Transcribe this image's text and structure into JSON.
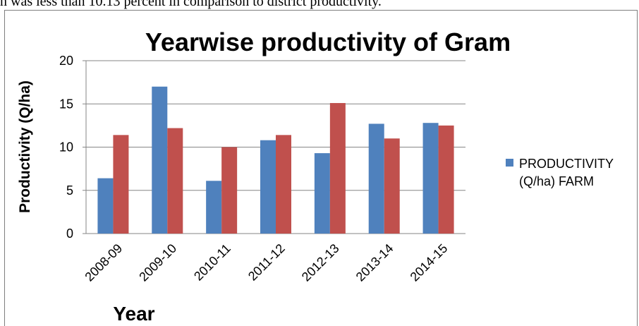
{
  "page": {
    "top_text": "n was less than 10.13 percent in comparison to district productivity."
  },
  "chart_data": {
    "type": "bar",
    "title": "Yearwise productivity of Gram",
    "xlabel": "Year",
    "ylabel": "Productivity  (Q/ha)",
    "categories": [
      "2008-09",
      "2009-10",
      "2010-11",
      "2011-12",
      "2012-13",
      "2013-14",
      "2014-15"
    ],
    "series": [
      {
        "name": "PRODUCTIVITY (Q/ha) FARM",
        "color": "#4f81bd",
        "values": [
          6.4,
          17.0,
          6.1,
          10.8,
          9.3,
          12.7,
          12.8
        ]
      },
      {
        "color": "#c0504d",
        "values": [
          11.4,
          12.2,
          10.0,
          11.4,
          15.1,
          11.0,
          12.5
        ]
      }
    ],
    "ylim": [
      0,
      20
    ],
    "yticks": [
      0,
      5,
      10,
      15,
      20
    ],
    "grid": true,
    "legend": {
      "position": "right",
      "lines": [
        "PRODUCTIVITY",
        "(Q/ha) FARM"
      ]
    }
  }
}
